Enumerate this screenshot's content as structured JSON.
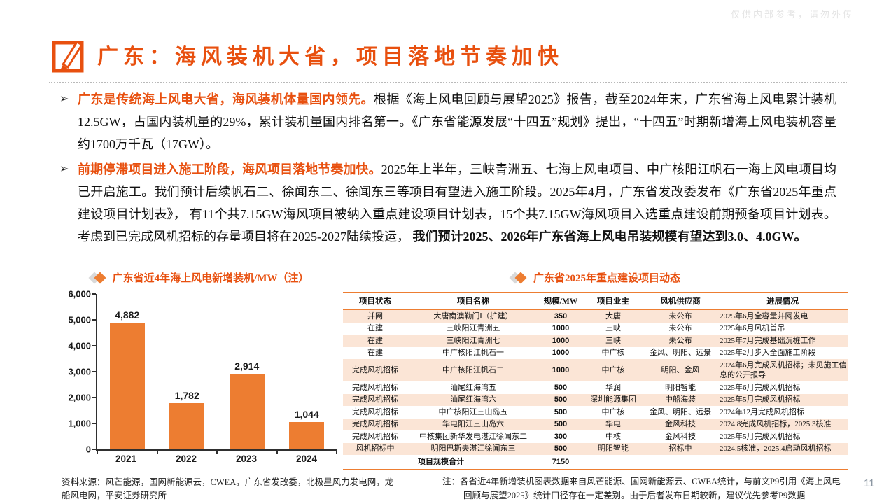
{
  "watermark": "仅供内部参考，请勿外传",
  "header": {
    "title": "广东：海风装机大省，项目落地节奏加快"
  },
  "bullet_marker": "➢",
  "bullets": [
    {
      "lead": "广东是传统海上风电大省，海风装机体量国内领先。",
      "body": "根据《海上风电回顾与展望2025》报告，截至2024年末，广东省海上风电累计装机12.5GW，占国内装机量的29%，累计装机量国内排名第一。《广东省能源发展“十四五”规划》提出，“十四五”时期新增海上风电装机容量约1700万千瓦（17GW）。",
      "tail": ""
    },
    {
      "lead": "前期停滞项目进入施工阶段，海风项目落地节奏加快。",
      "body": "2025年上半年，三峡青洲五、七海上风电项目、中广核阳江帆石一海上风电项目均已开启施工。我们预计后续帆石二、徐闻东二、徐闻东三等项目有望进入施工阶段。2025年4月，广东省发改委发布《广东省2025年重点建设项目计划表》， 有11个共7.15GW海风项目被纳入重点建设项目计划表，15个共7.15GW海风项目入选重点建设前期预备项目计划表。考虑到已完成风机招标的存量项目将在2025-2027陆续投运， ",
      "tail": "我们预计2025、2026年广东省海上风电吊装规模有望达到3.0、4.0GW。"
    }
  ],
  "chart": {
    "title": "广东省近4年海上风电新增装机/MW（注）",
    "source_note": "资料来源：风芒能源，国网新能源云，CWEA，广东省发改委，北极星风力发电网，龙船风电网，平安证券研究所"
  },
  "chart_data": {
    "type": "bar",
    "title": "广东省近4年海上风电新增装机/MW（注）",
    "categories": [
      "2021",
      "2022",
      "2023",
      "2024"
    ],
    "values": [
      4882,
      1782,
      2914,
      1044
    ],
    "value_labels": [
      "4,882",
      "1,782",
      "2,914",
      "1,044"
    ],
    "xlabel": "",
    "ylabel": "",
    "ylim": [
      0,
      6000
    ],
    "yticks": [
      0,
      1000,
      2000,
      3000,
      4000,
      5000,
      6000
    ],
    "ytick_labels": [
      "0",
      "1,000",
      "2,000",
      "3,000",
      "4,000",
      "5,000",
      "6,000"
    ],
    "grid": false,
    "legend": "none",
    "bar_color": "#ed7d31"
  },
  "table": {
    "title": "广东省2025年重点建设项目动态",
    "headers": [
      "项目状态",
      "项目名称",
      "规模/MW",
      "项目业主",
      "风机供应商",
      "进展情况"
    ],
    "rows": [
      {
        "status": "并网",
        "name": "大唐南澳勒门Ⅰ（扩建）",
        "mw": "350",
        "owner": "大唐",
        "supplier": "未公布",
        "progress": "2025年6月全容量并网发电"
      },
      {
        "status": "在建",
        "name": "三峡阳江青洲五",
        "mw": "1000",
        "owner": "三峡",
        "supplier": "未公布",
        "progress": "2025年6月风机首吊"
      },
      {
        "status": "在建",
        "name": "三峡阳江青洲七",
        "mw": "1000",
        "owner": "三峡",
        "supplier": "未公布",
        "progress": "2025年7月完成基础沉桩工作"
      },
      {
        "status": "在建",
        "name": "中广核阳江帆石一",
        "mw": "1000",
        "owner": "中广核",
        "supplier": "金风、明阳、远景",
        "progress": "2025年2月步入全面施工阶段"
      },
      {
        "status": "完成风机招标",
        "name": "中广核阳江帆石二",
        "mw": "1000",
        "owner": "中广核",
        "supplier": "明阳、金风",
        "progress": "2024年6月完成风机招标；未见施工信息的公开报导",
        "wrap": true
      },
      {
        "status": "完成风机招标",
        "name": "汕尾红海湾五",
        "mw": "500",
        "owner": "华润",
        "supplier": "明阳智能",
        "progress": "2025年6月完成风机招标"
      },
      {
        "status": "完成风机招标",
        "name": "汕尾红海湾六",
        "mw": "500",
        "owner": "深圳能源集团",
        "supplier": "中船海装",
        "progress": "2025年5月完成风机招标"
      },
      {
        "status": "完成风机招标",
        "name": "中广核阳江三山岛五",
        "mw": "500",
        "owner": "中广核",
        "supplier": "金风、明阳、远景",
        "progress": "2024年12月完成风机招标"
      },
      {
        "status": "完成风机招标",
        "name": "华电阳江三山岛六",
        "mw": "500",
        "owner": "华电",
        "supplier": "金风科技",
        "progress": "2024.8完成风机招标，2025.3核准"
      },
      {
        "status": "完成风机招标",
        "name": "中核集团新华发电湛江徐闻东二",
        "mw": "300",
        "owner": "中核",
        "supplier": "金风科技",
        "progress": "2025年5月完成风机招标"
      },
      {
        "status": "风机招标中",
        "name": "明阳巴斯夫湛江徐闻东三",
        "mw": "500",
        "owner": "明阳智能",
        "supplier": "招标中",
        "progress": "2024.5核准，2025.4启动风机招标"
      }
    ],
    "footer": {
      "label": "项目规模合计",
      "total": "7150"
    },
    "note": "注：各省近4年新增装机图表数据来自风芒能源、国网新能源云、CWEA统计，与前文P9引用《海上风电回顾与展望2025》统计口径存在一定差别。由于后者发布日期较新，建议优先参考P9数据"
  },
  "footer": {
    "page_number": "11"
  },
  "colors": {
    "accent": "#ed7d31",
    "title_orange": "#e8500f",
    "stripe": "#fbe5d6"
  }
}
